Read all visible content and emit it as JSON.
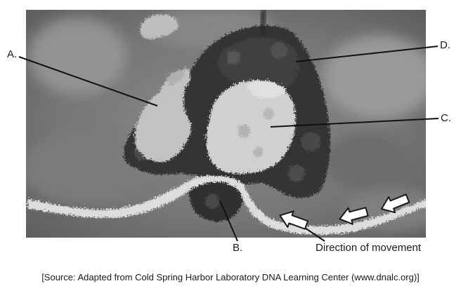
{
  "labels": {
    "a": "A.",
    "b": "B.",
    "c": "C.",
    "d": "D."
  },
  "direction_label": "Direction of movement",
  "source_caption": "[Source: Adapted from Cold Spring Harbor Laboratory DNA Learning Center (www.dnalc.org)]"
}
